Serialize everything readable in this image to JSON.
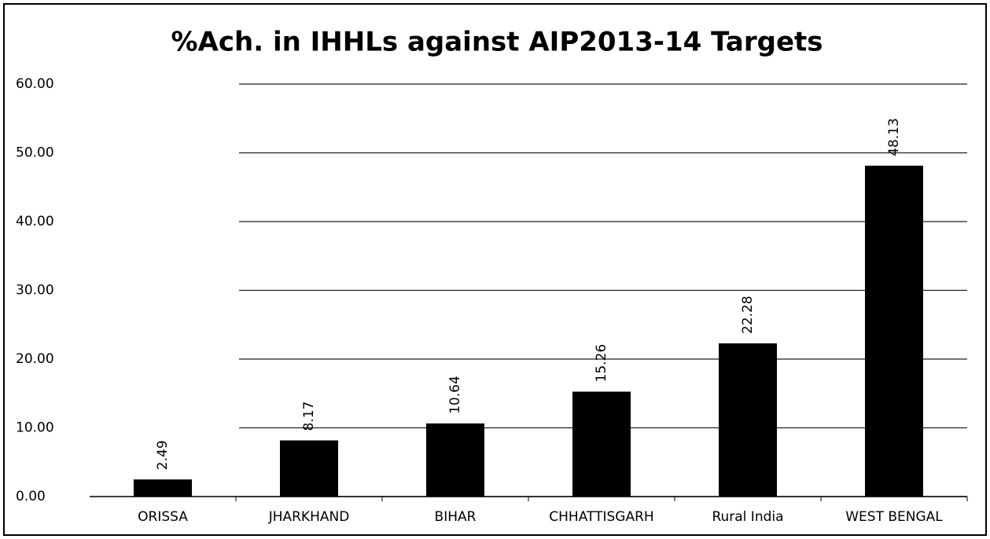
{
  "chart_data": {
    "type": "bar",
    "title": "%Ach. in IHHLs against AIP2013-14 Targets",
    "categories": [
      "ORISSA",
      "JHARKHAND",
      "BIHAR",
      "CHHATTISGARH",
      "Rural India",
      "WEST BENGAL"
    ],
    "values": [
      2.49,
      8.17,
      10.64,
      15.26,
      22.28,
      48.13
    ],
    "color": "#000000",
    "ylim": [
      0,
      60
    ],
    "yticks": [
      {
        "value": 0,
        "label": "0.00"
      },
      {
        "value": 10,
        "label": "10.00"
      },
      {
        "value": 20,
        "label": "20.00"
      },
      {
        "value": 30,
        "label": "30.00"
      },
      {
        "value": 40,
        "label": "40.00"
      },
      {
        "value": 50,
        "label": "50.00"
      },
      {
        "value": 60,
        "label": "60.00"
      }
    ],
    "grid": true
  }
}
